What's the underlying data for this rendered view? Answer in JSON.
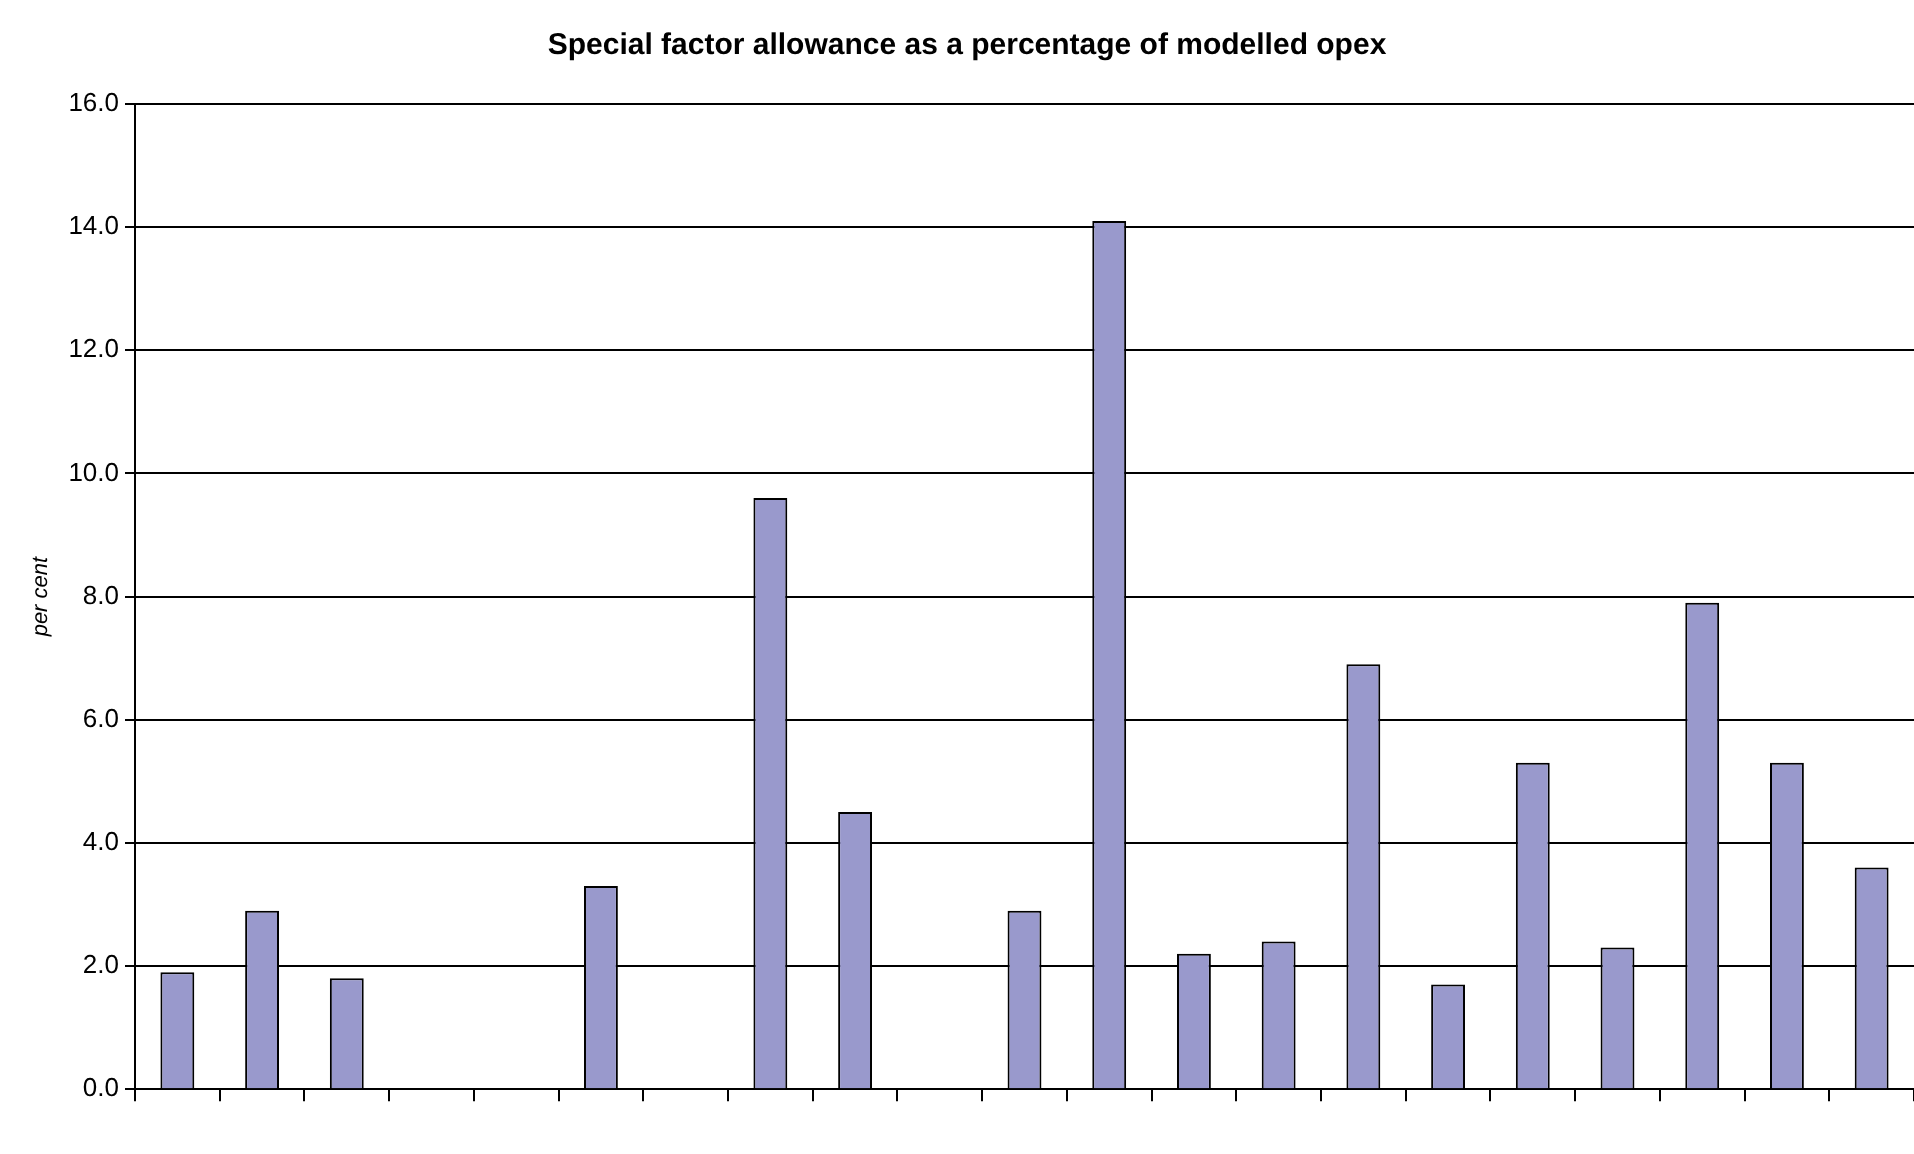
{
  "chart_data": {
    "type": "bar",
    "title": "Special factor allowance as a percentage of modelled opex",
    "ylabel": "per cent",
    "categories": [
      null,
      null,
      null,
      null,
      null,
      null,
      null,
      null,
      null,
      null,
      null,
      null,
      null,
      null,
      null,
      null,
      null,
      null,
      null,
      null,
      null
    ],
    "values": [
      1.9,
      2.9,
      1.8,
      0,
      0,
      3.3,
      0,
      9.6,
      4.5,
      0,
      2.9,
      14.1,
      2.2,
      2.4,
      6.9,
      1.7,
      5.3,
      2.3,
      7.9,
      5.3,
      3.6
    ],
    "color": "#9999cc",
    "ylim": [
      0,
      16
    ],
    "yticks": [
      {
        "value": 0,
        "label": "0.0"
      },
      {
        "value": 2,
        "label": "2.0"
      },
      {
        "value": 4,
        "label": "4.0"
      },
      {
        "value": 6,
        "label": "6.0"
      },
      {
        "value": 8,
        "label": "8.0"
      },
      {
        "value": 10,
        "label": "10.0"
      },
      {
        "value": 12,
        "label": "12.0"
      },
      {
        "value": 14,
        "label": "14.0"
      },
      {
        "value": 16,
        "label": "16.0"
      }
    ],
    "grid": "y",
    "legend": false
  }
}
